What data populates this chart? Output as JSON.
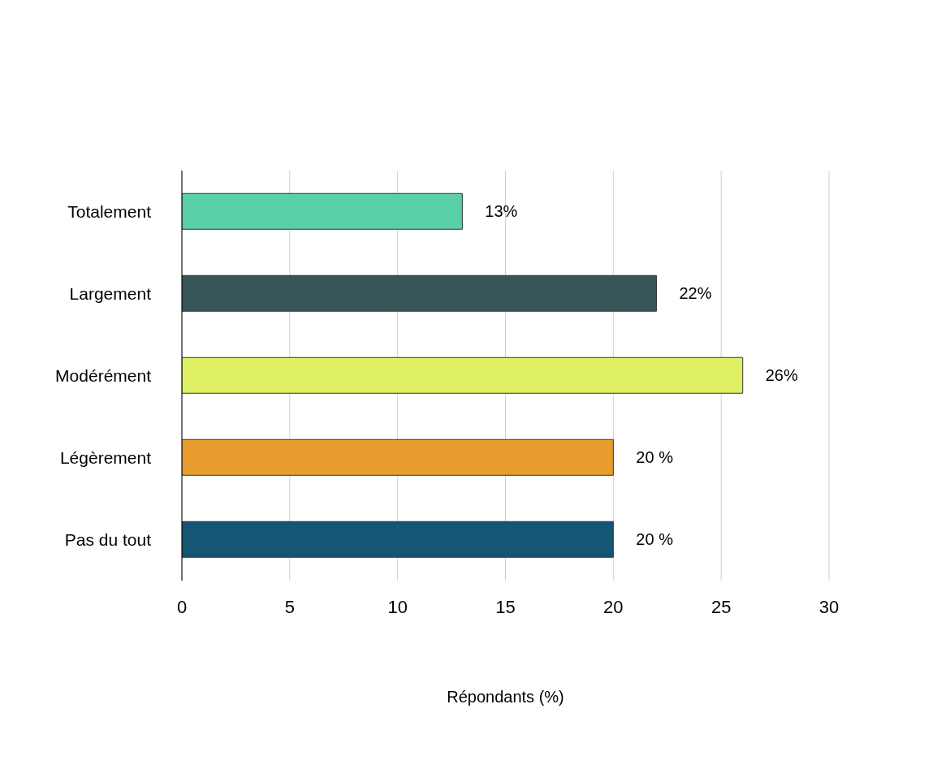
{
  "chart_data": {
    "type": "bar",
    "orientation": "horizontal",
    "xlabel": "Répondants (%)",
    "categories": [
      "Totalement",
      "Largement",
      "Modérément",
      "Légèrement",
      "Pas du tout"
    ],
    "values": [
      13,
      22,
      26,
      20,
      20
    ],
    "colors": [
      "#5ad0a9",
      "#365659",
      "#dff064",
      "#e89d2e",
      "#145673"
    ],
    "value_labels": [
      "13%",
      "22%",
      "26%",
      "20 %",
      "20 %"
    ],
    "xlim": [
      0,
      30
    ],
    "xticks": [
      0,
      5,
      10,
      15,
      20,
      25,
      30
    ],
    "grid": "x",
    "legend": false
  }
}
